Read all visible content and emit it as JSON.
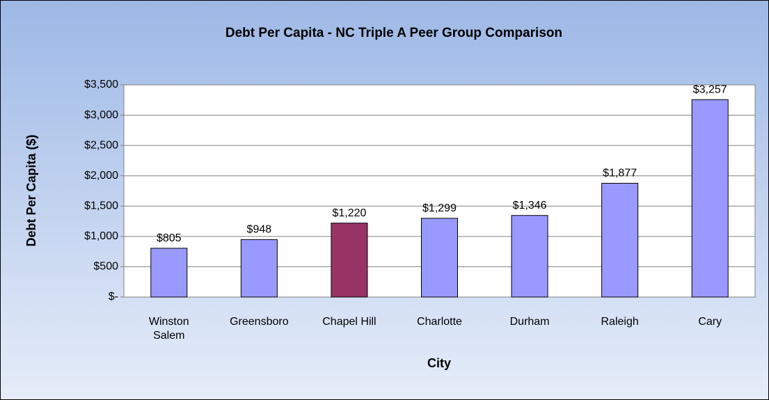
{
  "chart_data": {
    "type": "bar",
    "title": "Debt Per Capita - NC Triple A Peer Group Comparison",
    "x_label": "City",
    "y_label": "Debt Per Capita ($)",
    "categories": [
      "Winston Salem",
      "Greensboro",
      "Chapel Hill",
      "Charlotte",
      "Durham",
      "Raleigh",
      "Cary"
    ],
    "values": [
      805,
      948,
      1220,
      1299,
      1346,
      1877,
      3257
    ],
    "value_labels": [
      "$805",
      "$948",
      "$1,220",
      "$1,299",
      "$1,346",
      "$1,877",
      "$3,257"
    ],
    "colors": [
      "#9999ff",
      "#9999ff",
      "#993366",
      "#9999ff",
      "#9999ff",
      "#9999ff",
      "#9999ff"
    ],
    "ylim": [
      0,
      3500
    ],
    "yticks": [
      {
        "value": 0,
        "label": "$-"
      },
      {
        "value": 500,
        "label": "$500"
      },
      {
        "value": 1000,
        "label": "$1,000"
      },
      {
        "value": 1500,
        "label": "$1,500"
      },
      {
        "value": 2000,
        "label": "$2,000"
      },
      {
        "value": 2500,
        "label": "$2,500"
      },
      {
        "value": 3000,
        "label": "$3,000"
      },
      {
        "value": 3500,
        "label": "$3,500"
      }
    ],
    "grid": true
  }
}
